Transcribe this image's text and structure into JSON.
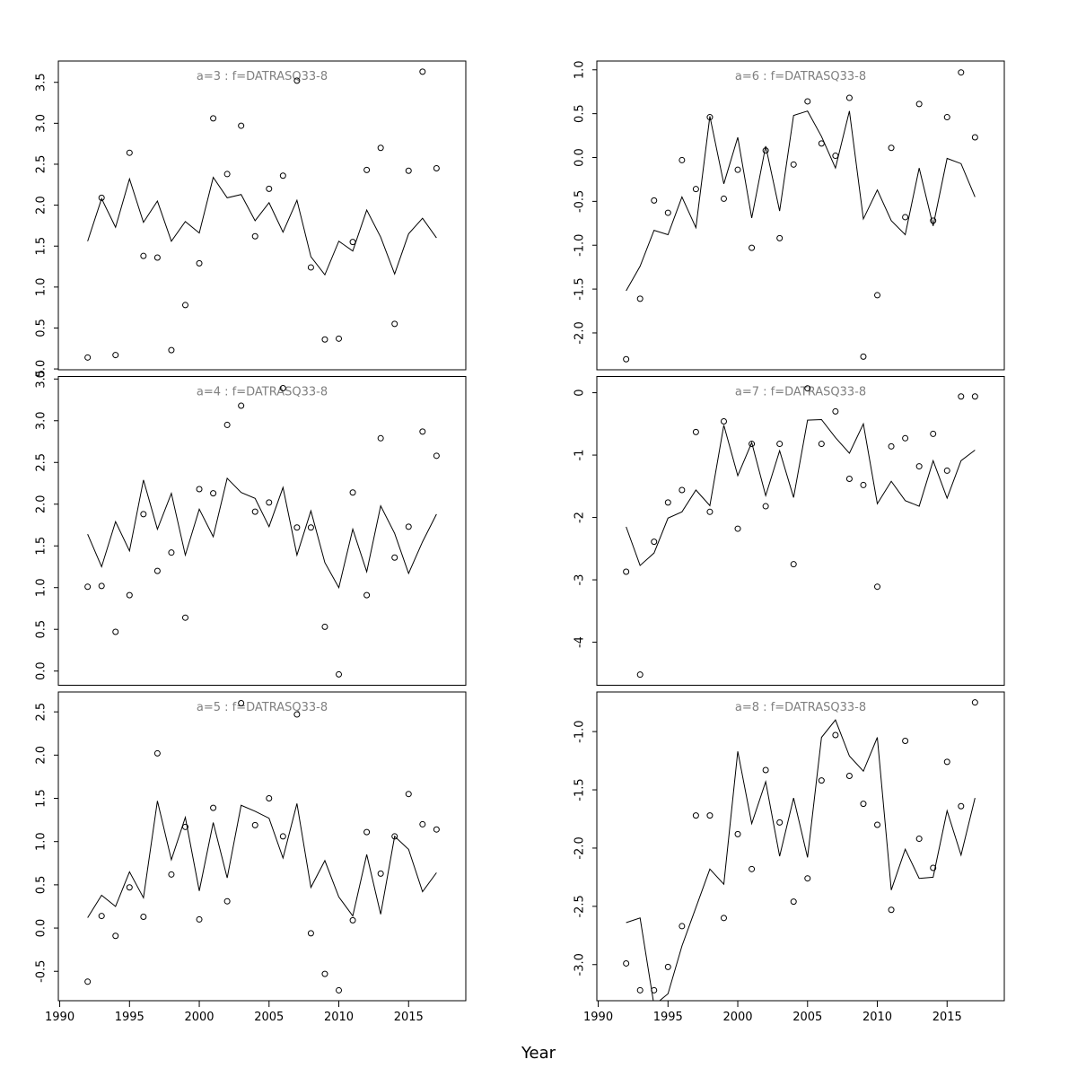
{
  "x_label": "Year",
  "chart_data": [
    {
      "type": "scatter-line",
      "title": "a=3  :  f=DATRASQ33-8",
      "show_xaxis": false,
      "x": [
        1992,
        1993,
        1994,
        1995,
        1996,
        1997,
        1998,
        1999,
        2000,
        2001,
        2002,
        2003,
        2004,
        2005,
        2006,
        2007,
        2008,
        2009,
        2010,
        2011,
        2012,
        2013,
        2014,
        2015,
        2016,
        2017
      ],
      "xlim": [
        1989.9,
        2019.1
      ],
      "xticks": [
        1990,
        1995,
        2000,
        2005,
        2010,
        2015
      ],
      "ylim": [
        -0.01,
        3.76
      ],
      "yticks": [
        {
          "value": 0,
          "label": "0.0"
        },
        0.5,
        {
          "value": 1,
          "label": "1.0"
        },
        1.5,
        {
          "value": 2,
          "label": "2.0"
        },
        2.5,
        {
          "value": 3,
          "label": "3.0"
        },
        3.5
      ],
      "series": [
        {
          "mode": "points",
          "color": "#000000",
          "values": [
            0.14,
            2.09,
            0.17,
            2.64,
            1.38,
            1.36,
            0.23,
            0.78,
            1.29,
            3.06,
            2.38,
            2.97,
            1.62,
            2.2,
            2.36,
            3.52,
            1.24,
            0.36,
            0.37,
            1.55,
            2.43,
            2.7,
            0.55,
            2.42,
            3.63,
            2.45
          ]
        },
        {
          "mode": "line",
          "color": "#000000",
          "values": [
            1.56,
            2.08,
            1.73,
            2.32,
            1.79,
            2.05,
            1.56,
            1.8,
            1.66,
            2.34,
            2.09,
            2.13,
            1.81,
            2.03,
            1.67,
            2.06,
            1.37,
            1.15,
            1.56,
            1.44,
            1.94,
            1.61,
            1.16,
            1.65,
            1.84,
            1.6
          ]
        }
      ]
    },
    {
      "type": "scatter-line",
      "title": "a=6  :  f=DATRASQ33-8",
      "show_xaxis": false,
      "x": [
        1992,
        1993,
        1994,
        1995,
        1996,
        1997,
        1998,
        1999,
        2000,
        2001,
        2002,
        2003,
        2004,
        2005,
        2006,
        2007,
        2008,
        2009,
        2010,
        2011,
        2012,
        2013,
        2014,
        2015,
        2016,
        2017
      ],
      "xlim": [
        1989.9,
        2019.1
      ],
      "xticks": [
        1990,
        1995,
        2000,
        2005,
        2010,
        2015
      ],
      "ylim": [
        -2.42,
        1.1
      ],
      "yticks": [
        {
          "value": -2,
          "label": "-2.0"
        },
        -1.5,
        {
          "value": -1,
          "label": "-1.0"
        },
        -0.5,
        {
          "value": 0,
          "label": "0.0"
        },
        0.5,
        {
          "value": 1,
          "label": "1.0"
        }
      ],
      "series": [
        {
          "mode": "points",
          "color": "#000000",
          "values": [
            -2.3,
            -1.61,
            -0.49,
            -0.63,
            -0.03,
            -0.36,
            0.46,
            -0.47,
            -0.14,
            -1.03,
            0.08,
            -0.92,
            -0.08,
            0.64,
            0.16,
            0.02,
            0.68,
            -2.27,
            -1.57,
            0.11,
            -0.68,
            0.61,
            -0.72,
            0.46,
            0.97,
            0.23
          ]
        },
        {
          "mode": "line",
          "color": "#000000",
          "values": [
            -1.52,
            -1.24,
            -0.83,
            -0.88,
            -0.45,
            -0.8,
            0.47,
            -0.3,
            0.23,
            -0.69,
            0.13,
            -0.61,
            0.48,
            0.53,
            0.24,
            -0.12,
            0.53,
            -0.7,
            -0.37,
            -0.72,
            -0.88,
            -0.12,
            -0.78,
            -0.01,
            -0.07,
            -0.45
          ]
        }
      ]
    },
    {
      "type": "scatter-line",
      "title": "a=4  :  f=DATRASQ33-8",
      "show_xaxis": false,
      "x": [
        1992,
        1993,
        1994,
        1995,
        1996,
        1997,
        1998,
        1999,
        2000,
        2001,
        2002,
        2003,
        2004,
        2005,
        2006,
        2007,
        2008,
        2009,
        2010,
        2011,
        2012,
        2013,
        2014,
        2015,
        2016,
        2017
      ],
      "xlim": [
        1989.9,
        2019.1
      ],
      "xticks": [
        1990,
        1995,
        2000,
        2005,
        2010,
        2015
      ],
      "ylim": [
        -0.17,
        3.53
      ],
      "yticks": [
        {
          "value": 0,
          "label": "0.0"
        },
        0.5,
        {
          "value": 1,
          "label": "1.0"
        },
        1.5,
        {
          "value": 2,
          "label": "2.0"
        },
        2.5,
        {
          "value": 3,
          "label": "3.0"
        },
        3.5
      ],
      "series": [
        {
          "mode": "points",
          "color": "#000000",
          "values": [
            1.01,
            1.02,
            0.47,
            0.91,
            1.88,
            1.2,
            1.42,
            0.64,
            2.18,
            2.13,
            2.95,
            3.18,
            1.91,
            2.02,
            3.39,
            1.72,
            1.72,
            0.53,
            -0.04,
            2.14,
            0.91,
            2.79,
            1.36,
            1.73,
            2.87,
            2.58
          ]
        },
        {
          "mode": "line",
          "color": "#000000",
          "values": [
            1.64,
            1.25,
            1.79,
            1.44,
            2.29,
            1.7,
            2.13,
            1.39,
            1.94,
            1.61,
            2.31,
            2.14,
            2.07,
            1.73,
            2.2,
            1.39,
            1.92,
            1.3,
            1.0,
            1.7,
            1.19,
            1.98,
            1.65,
            1.17,
            1.55,
            1.88
          ]
        }
      ]
    },
    {
      "type": "scatter-line",
      "title": "a=7  :  f=DATRASQ33-8",
      "show_xaxis": false,
      "x": [
        1992,
        1993,
        1994,
        1995,
        1996,
        1997,
        1998,
        1999,
        2000,
        2001,
        2002,
        2003,
        2004,
        2005,
        2006,
        2007,
        2008,
        2009,
        2010,
        2011,
        2012,
        2013,
        2014,
        2015,
        2016,
        2017
      ],
      "xlim": [
        1989.9,
        2019.1
      ],
      "xticks": [
        1990,
        1995,
        2000,
        2005,
        2010,
        2015
      ],
      "ylim": [
        -4.69,
        0.26
      ],
      "yticks": [
        -4,
        -3,
        -2,
        -1,
        0
      ],
      "series": [
        {
          "mode": "points",
          "color": "#000000",
          "values": [
            -2.87,
            -4.52,
            -2.39,
            -1.76,
            -1.56,
            -0.63,
            -1.91,
            -0.46,
            -2.18,
            -0.82,
            -1.82,
            -0.82,
            -2.75,
            0.07,
            -0.82,
            -0.3,
            -1.38,
            -1.48,
            -3.11,
            -0.86,
            -0.73,
            -1.18,
            -0.66,
            -1.25,
            -0.06,
            -0.06
          ]
        },
        {
          "mode": "line",
          "color": "#000000",
          "values": [
            -2.15,
            -2.77,
            -2.57,
            -2.01,
            -1.91,
            -1.56,
            -1.81,
            -0.52,
            -1.33,
            -0.8,
            -1.65,
            -0.93,
            -1.68,
            -0.44,
            -0.43,
            -0.72,
            -0.97,
            -0.5,
            -1.78,
            -1.42,
            -1.73,
            -1.82,
            -1.09,
            -1.69,
            -1.09,
            -0.92
          ]
        }
      ]
    },
    {
      "type": "scatter-line",
      "title": "a=5  :  f=DATRASQ33-8",
      "show_xaxis": true,
      "x": [
        1992,
        1993,
        1994,
        1995,
        1996,
        1997,
        1998,
        1999,
        2000,
        2001,
        2002,
        2003,
        2004,
        2005,
        2006,
        2007,
        2008,
        2009,
        2010,
        2011,
        2012,
        2013,
        2014,
        2015,
        2016,
        2017
      ],
      "xlim": [
        1989.9,
        2019.1
      ],
      "xticks": [
        1990,
        1995,
        2000,
        2005,
        2010,
        2015
      ],
      "ylim": [
        -0.84,
        2.73
      ],
      "yticks": [
        -0.5,
        {
          "value": 0,
          "label": "0.0"
        },
        0.5,
        {
          "value": 1,
          "label": "1.0"
        },
        1.5,
        {
          "value": 2,
          "label": "2.0"
        },
        2.5
      ],
      "series": [
        {
          "mode": "points",
          "color": "#000000",
          "values": [
            -0.62,
            0.14,
            -0.09,
            0.47,
            0.13,
            2.02,
            0.62,
            1.17,
            0.1,
            1.39,
            0.31,
            2.6,
            1.19,
            1.5,
            1.06,
            2.47,
            -0.06,
            -0.53,
            -0.72,
            0.09,
            1.11,
            0.63,
            1.06,
            1.55,
            1.2,
            1.14
          ]
        },
        {
          "mode": "line",
          "color": "#000000",
          "values": [
            0.12,
            0.38,
            0.25,
            0.65,
            0.35,
            1.47,
            0.79,
            1.28,
            0.43,
            1.22,
            0.58,
            1.42,
            1.35,
            1.27,
            0.81,
            1.44,
            0.47,
            0.78,
            0.36,
            0.14,
            0.85,
            0.16,
            1.06,
            0.91,
            0.42,
            0.64
          ]
        }
      ]
    },
    {
      "type": "scatter-line",
      "title": "a=8  :  f=DATRASQ33-8",
      "show_xaxis": true,
      "x": [
        1992,
        1993,
        1994,
        1995,
        1996,
        1997,
        1998,
        1999,
        2000,
        2001,
        2002,
        2003,
        2004,
        2005,
        2006,
        2007,
        2008,
        2009,
        2010,
        2011,
        2012,
        2013,
        2014,
        2015,
        2016,
        2017
      ],
      "xlim": [
        1989.9,
        2019.1
      ],
      "xticks": [
        1990,
        1995,
        2000,
        2005,
        2010,
        2015
      ],
      "ylim": [
        -3.31,
        -0.66
      ],
      "yticks": [
        {
          "value": -3,
          "label": "-3.0"
        },
        -2.5,
        {
          "value": -2,
          "label": "-2.0"
        },
        -1.5,
        {
          "value": -1,
          "label": "-1.0"
        }
      ],
      "series": [
        {
          "mode": "points",
          "color": "#000000",
          "values": [
            -2.99,
            -3.22,
            -3.22,
            -3.02,
            -2.67,
            -1.72,
            -1.72,
            -2.6,
            -1.88,
            -2.18,
            -1.33,
            -1.78,
            -2.46,
            -2.26,
            -1.42,
            -1.03,
            -1.38,
            -1.62,
            -1.8,
            -2.53,
            -1.08,
            -1.92,
            -2.17,
            -1.26,
            -1.64,
            -0.75
          ]
        },
        {
          "mode": "line",
          "color": "#000000",
          "values": [
            -2.64,
            -2.6,
            -3.35,
            -3.25,
            -2.84,
            -2.51,
            -2.18,
            -2.31,
            -1.17,
            -1.79,
            -1.43,
            -2.07,
            -1.57,
            -2.08,
            -1.05,
            -0.9,
            -1.21,
            -1.34,
            -1.05,
            -2.36,
            -2.01,
            -2.26,
            -2.25,
            -1.68,
            -2.06,
            -1.57
          ]
        }
      ]
    }
  ]
}
